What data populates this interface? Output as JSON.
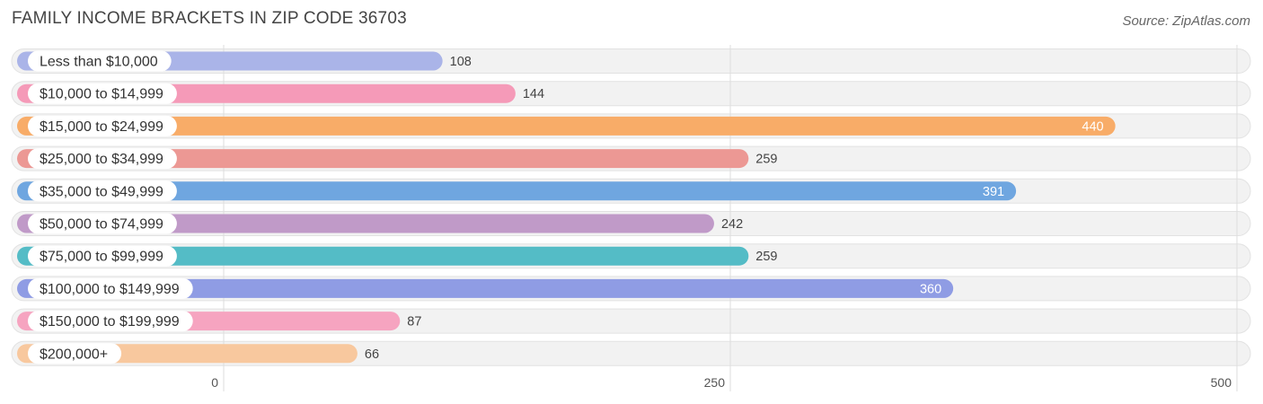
{
  "header": {
    "title": "FAMILY INCOME BRACKETS IN ZIP CODE 36703",
    "source": "Source: ZipAtlas.com"
  },
  "chart_data": {
    "type": "bar",
    "orientation": "horizontal",
    "title": "FAMILY INCOME BRACKETS IN ZIP CODE 36703",
    "xlabel": "",
    "ylabel": "",
    "xlim": [
      0,
      500
    ],
    "xticks": [
      0,
      250,
      500
    ],
    "grid": true,
    "categories": [
      "Less than $10,000",
      "$10,000 to $14,999",
      "$15,000 to $24,999",
      "$25,000 to $34,999",
      "$35,000 to $49,999",
      "$50,000 to $74,999",
      "$75,000 to $99,999",
      "$100,000 to $149,999",
      "$150,000 to $199,999",
      "$200,000+"
    ],
    "values": [
      108,
      144,
      440,
      259,
      391,
      242,
      259,
      360,
      87,
      66
    ],
    "colors": [
      "#aab4e8",
      "#f59ab8",
      "#f8ac68",
      "#ec9894",
      "#6fa6e0",
      "#c09ac8",
      "#54bcc6",
      "#8f9ce4",
      "#f6a4c0",
      "#f8c89e"
    ]
  }
}
